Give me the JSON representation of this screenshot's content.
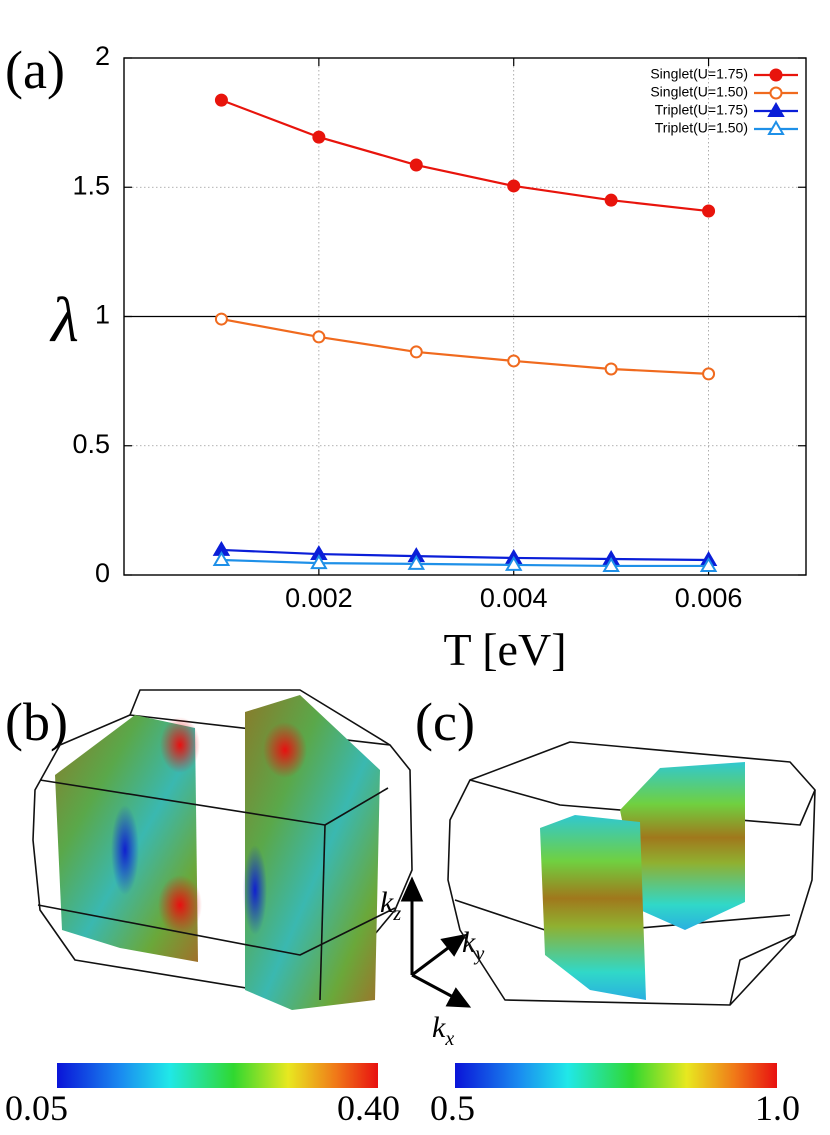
{
  "panel_labels": [
    "(a)",
    "(b)",
    "(c)"
  ],
  "chart_data": {
    "type": "line",
    "y_label": "λ",
    "x_label": "T [eV]",
    "x": [
      0.001,
      0.002,
      0.003,
      0.004,
      0.005,
      0.006
    ],
    "xlim": [
      0,
      0.007
    ],
    "xticks": [
      0.002,
      0.004,
      0.006
    ],
    "ylim": [
      0,
      2
    ],
    "yticks": [
      0,
      0.5,
      1,
      1.5,
      2
    ],
    "grid": true,
    "reference_line": 1,
    "legend": "upper right",
    "series": [
      {
        "name": "Singlet(U=1.75)",
        "color": "#e8140c",
        "marker": "circle",
        "filled": true,
        "values": [
          1.837,
          1.694,
          1.586,
          1.505,
          1.45,
          1.408
        ]
      },
      {
        "name": "Singlet(U=1.50)",
        "color": "#f06a1e",
        "marker": "circle",
        "filled": false,
        "values": [
          0.99,
          0.921,
          0.863,
          0.828,
          0.797,
          0.778
        ]
      },
      {
        "name": "Triplet(U=1.75)",
        "color": "#0a1ed8",
        "marker": "triangle",
        "filled": true,
        "values": [
          0.097,
          0.081,
          0.073,
          0.066,
          0.062,
          0.058
        ]
      },
      {
        "name": "Triplet(U=1.50)",
        "color": "#1e90e8",
        "marker": "triangle",
        "filled": false,
        "values": [
          0.058,
          0.046,
          0.043,
          0.039,
          0.035,
          0.035
        ]
      }
    ]
  },
  "colorbars": [
    {
      "min_label": "0.05",
      "max_label": "0.40"
    },
    {
      "min_label": "0.5",
      "max_label": "1.0"
    }
  ],
  "axes_labels": [
    {
      "base": "k",
      "sub": "z"
    },
    {
      "base": "k",
      "sub": "y"
    },
    {
      "base": "k",
      "sub": "x"
    }
  ]
}
